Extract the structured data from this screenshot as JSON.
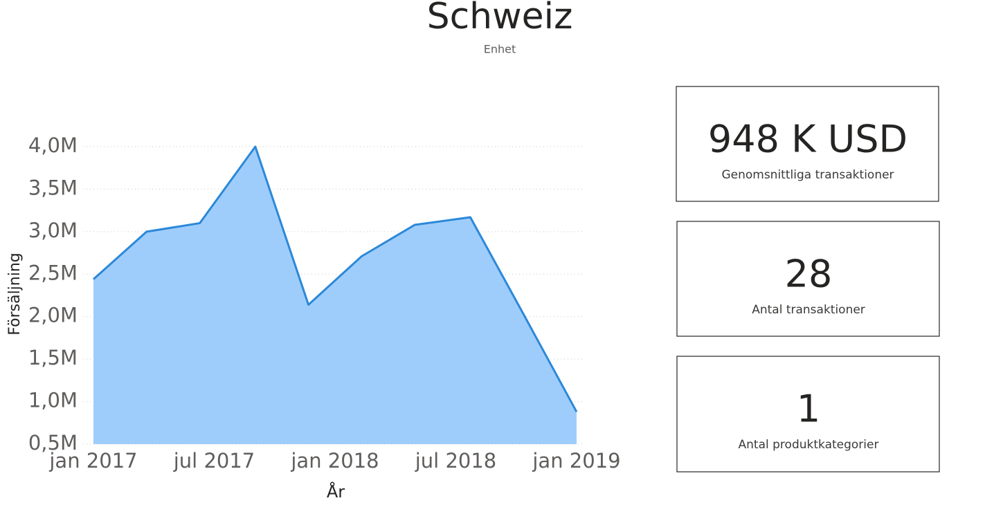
{
  "header": {
    "title": "Schweiz",
    "subtitle": "Enhet"
  },
  "chart_data": {
    "type": "area",
    "x_label": "År",
    "y_label": "Försäljning",
    "x": [
      2017,
      2017.22,
      2017.44,
      2017.67,
      2017.89,
      2018.11,
      2018.33,
      2018.56,
      2018.78,
      2019
    ],
    "values": [
      2440000,
      3000000,
      3100000,
      4000000,
      2140000,
      2710000,
      3080000,
      3170000,
      2030000,
      880000
    ],
    "color": "#2b88d8",
    "fill": "#9fcdfb",
    "xlim": [
      2017,
      2019
    ],
    "xticks": [
      {
        "value": 2017,
        "label": "jan 2017"
      },
      {
        "value": 2017.5,
        "label": "jul 2017"
      },
      {
        "value": 2018,
        "label": "jan 2018"
      },
      {
        "value": 2018.5,
        "label": "jul 2018"
      },
      {
        "value": 2019,
        "label": "jan 2019"
      }
    ],
    "ylim": [
      500000,
      4000000
    ],
    "yticks": [
      {
        "value": 500000,
        "label": "0,5M"
      },
      {
        "value": 1000000,
        "label": "1,0M"
      },
      {
        "value": 1500000,
        "label": "1,5M"
      },
      {
        "value": 2000000,
        "label": "2,0M"
      },
      {
        "value": 2500000,
        "label": "2,5M"
      },
      {
        "value": 3000000,
        "label": "3,0M"
      },
      {
        "value": 3500000,
        "label": "3,5M"
      },
      {
        "value": 4000000,
        "label": "4,0M"
      }
    ],
    "grid": true
  },
  "cards": [
    {
      "value": "948 K USD",
      "label": "Genomsnittliga transaktioner"
    },
    {
      "value": "28",
      "label": "Antal transaktioner"
    },
    {
      "value": "1",
      "label": "Antal produktkategorier"
    }
  ]
}
